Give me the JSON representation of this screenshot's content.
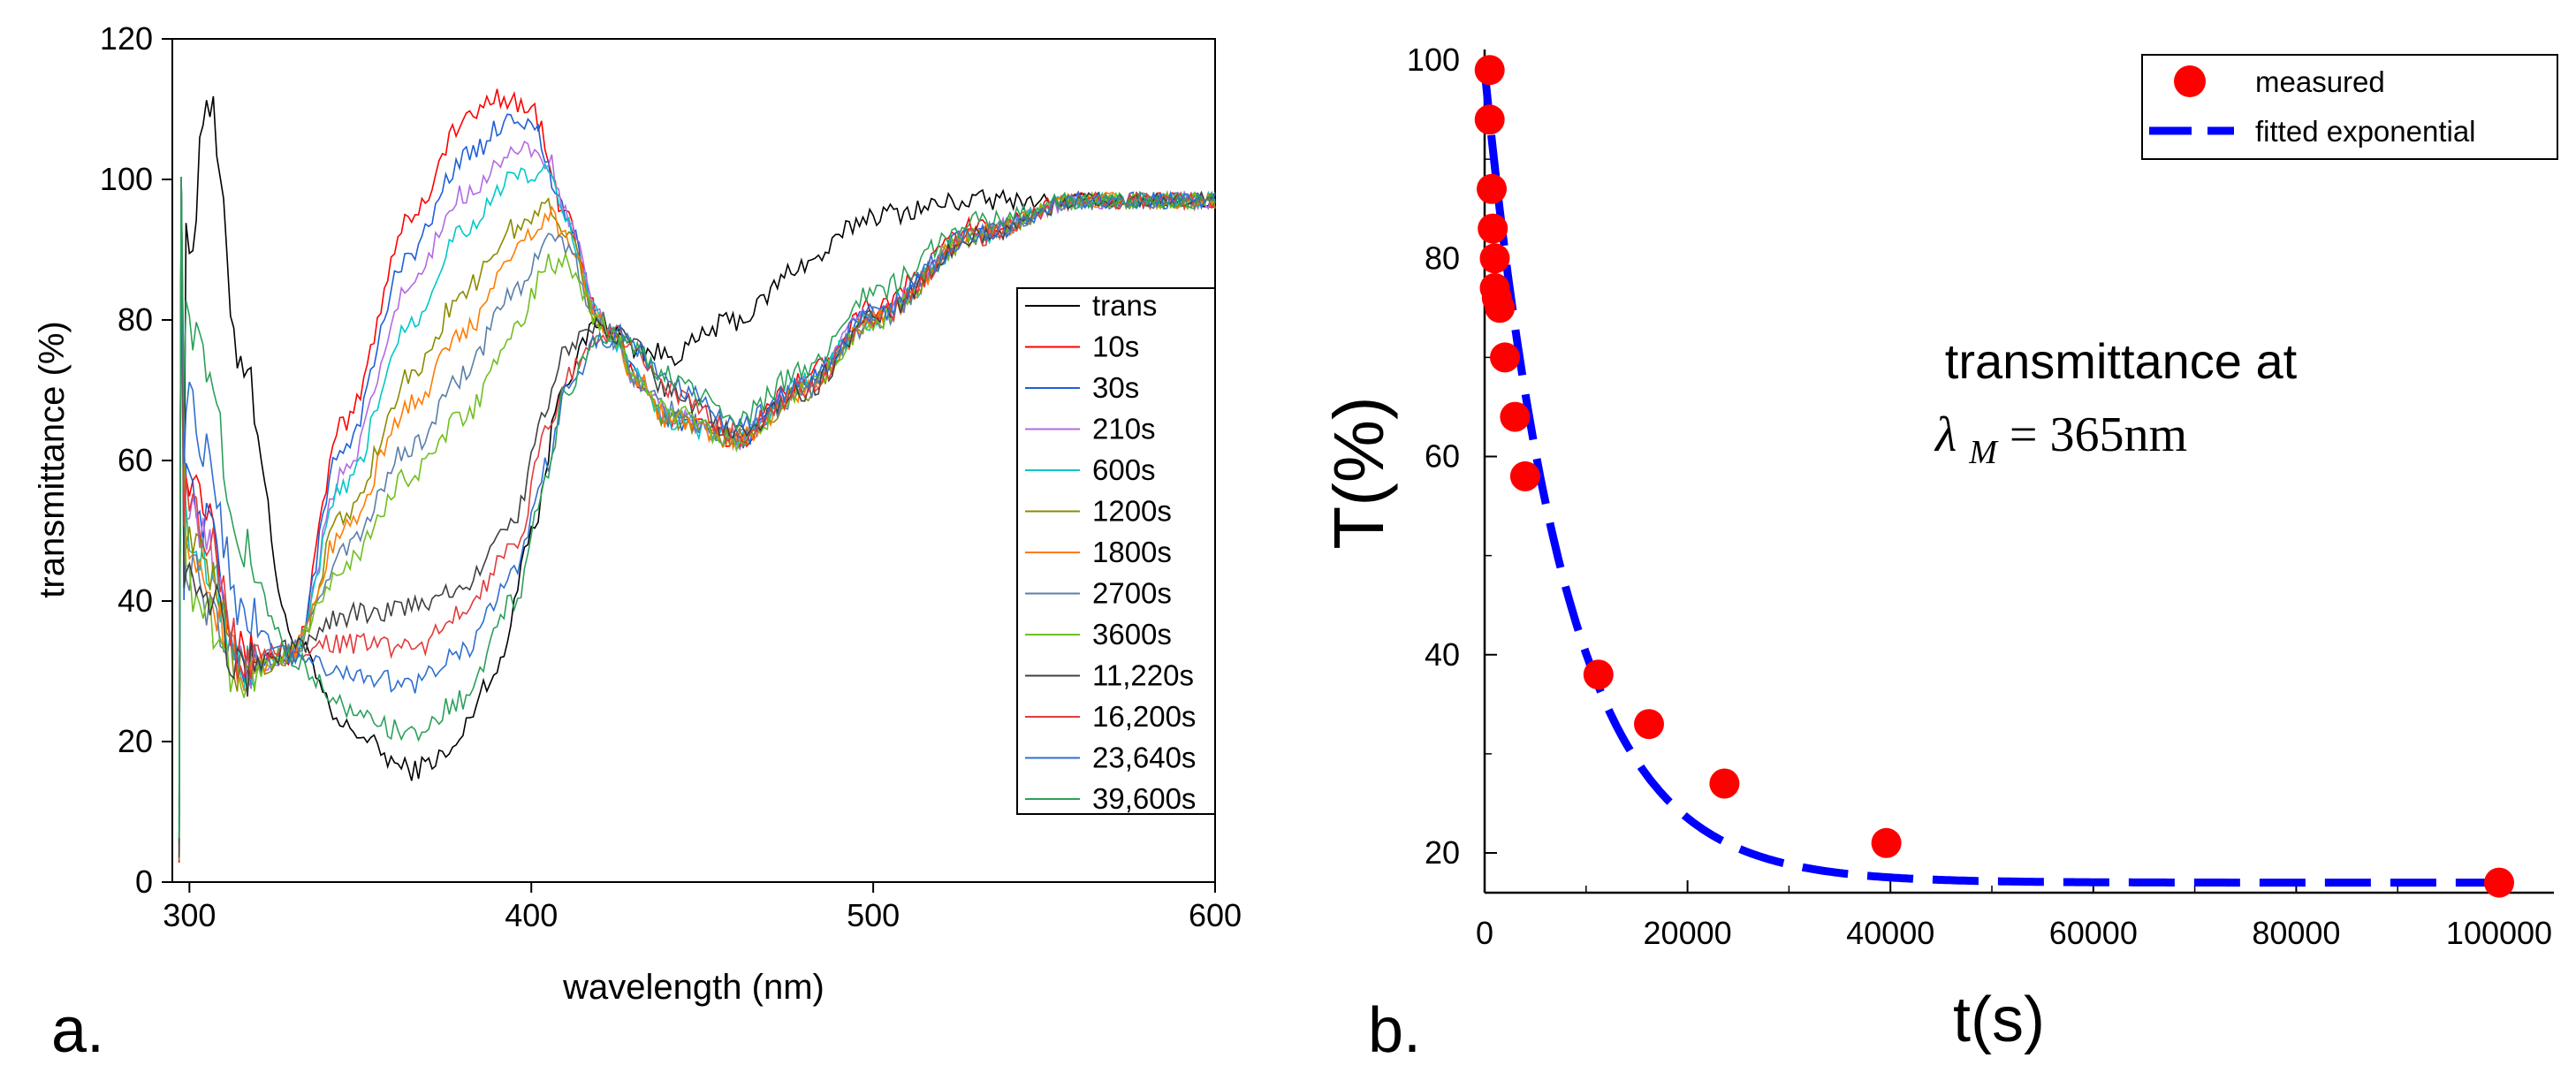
{
  "chart_data": [
    {
      "type": "line",
      "panel_label": "a.",
      "title": "",
      "xlabel": "wavelength (nm)",
      "ylabel": "transmittance (%)",
      "xlim": [
        295,
        600
      ],
      "ylim": [
        0,
        120
      ],
      "xticks": [
        300,
        400,
        500,
        600
      ],
      "yticks": [
        0,
        20,
        40,
        60,
        80,
        100,
        120
      ],
      "legend_position": "right",
      "series": [
        {
          "name": "trans",
          "color": "#000000",
          "x": [
            300,
            305,
            315,
            330,
            345,
            365,
            375,
            390,
            400,
            410,
            420,
            425,
            430,
            440,
            460,
            480,
            500,
            530,
            560,
            600
          ],
          "y": [
            90,
            112,
            75,
            35,
            22,
            16,
            18,
            30,
            50,
            72,
            80,
            78,
            76,
            75,
            80,
            88,
            95,
            97,
            97,
            97
          ]
        },
        {
          "name": "10s",
          "color": "#ff0000",
          "x": [
            300,
            305,
            315,
            330,
            345,
            365,
            380,
            390,
            400,
            410,
            420,
            425,
            430,
            440,
            460,
            480,
            500,
            530,
            560,
            600
          ],
          "y": [
            58,
            55,
            32,
            32,
            65,
            95,
            108,
            112,
            110,
            95,
            80,
            77,
            72,
            66,
            63,
            72,
            82,
            93,
            97,
            97
          ]
        },
        {
          "name": "30s",
          "color": "#1f5fd6",
          "x": [
            300,
            305,
            315,
            330,
            345,
            365,
            380,
            395,
            400,
            410,
            420,
            425,
            430,
            440,
            460,
            480,
            500,
            530,
            560,
            600
          ],
          "y": [
            56,
            52,
            31,
            32,
            62,
            90,
            103,
            109,
            108,
            95,
            80,
            77,
            72,
            66,
            63,
            71,
            81,
            92,
            97,
            97
          ]
        },
        {
          "name": "210s",
          "color": "#b36ae2",
          "x": [
            300,
            305,
            315,
            330,
            345,
            365,
            380,
            395,
            405,
            410,
            420,
            425,
            430,
            440,
            460,
            480,
            500,
            530,
            560,
            600
          ],
          "y": [
            52,
            48,
            30,
            32,
            58,
            85,
            98,
            104,
            103,
            95,
            80,
            77,
            72,
            66,
            63,
            71,
            81,
            92,
            97,
            97
          ]
        },
        {
          "name": "600s",
          "color": "#00c8c8",
          "x": [
            300,
            305,
            315,
            330,
            345,
            365,
            380,
            395,
            405,
            410,
            420,
            425,
            430,
            440,
            460,
            480,
            500,
            530,
            560,
            600
          ],
          "y": [
            50,
            46,
            30,
            32,
            56,
            80,
            93,
            100,
            101,
            94,
            80,
            77,
            72,
            66,
            63,
            71,
            80,
            92,
            97,
            97
          ]
        },
        {
          "name": "1200s",
          "color": "#8b8b00",
          "x": [
            300,
            305,
            315,
            330,
            345,
            365,
            380,
            395,
            405,
            410,
            420,
            425,
            430,
            440,
            460,
            480,
            500,
            530,
            560,
            600
          ],
          "y": [
            48,
            44,
            30,
            32,
            52,
            72,
            84,
            93,
            96,
            93,
            80,
            77,
            72,
            66,
            63,
            70,
            80,
            92,
            97,
            97
          ]
        },
        {
          "name": "1800s",
          "color": "#ff7b00",
          "x": [
            300,
            305,
            315,
            330,
            345,
            365,
            380,
            395,
            405,
            410,
            420,
            425,
            430,
            440,
            460,
            480,
            500,
            530,
            560,
            600
          ],
          "y": [
            46,
            42,
            30,
            33,
            50,
            68,
            78,
            90,
            95,
            92,
            80,
            77,
            72,
            66,
            63,
            70,
            80,
            92,
            97,
            97
          ]
        },
        {
          "name": "2700s",
          "color": "#5a7fa8",
          "x": [
            300,
            305,
            315,
            330,
            345,
            365,
            380,
            395,
            405,
            410,
            420,
            425,
            430,
            440,
            460,
            480,
            500,
            530,
            560,
            600
          ],
          "y": [
            44,
            40,
            30,
            33,
            47,
            62,
            72,
            84,
            92,
            90,
            80,
            77,
            72,
            67,
            63,
            70,
            80,
            92,
            97,
            97
          ]
        },
        {
          "name": "3600s",
          "color": "#6fbf20",
          "x": [
            300,
            305,
            315,
            330,
            345,
            365,
            380,
            395,
            405,
            410,
            420,
            425,
            430,
            440,
            460,
            480,
            500,
            530,
            560,
            600
          ],
          "y": [
            42,
            38,
            29,
            33,
            45,
            58,
            66,
            78,
            88,
            88,
            80,
            77,
            72,
            67,
            63,
            70,
            80,
            92,
            97,
            97
          ]
        },
        {
          "name": "11,220s",
          "color": "#404040",
          "x": [
            300,
            305,
            315,
            330,
            345,
            365,
            380,
            395,
            405,
            410,
            420,
            425,
            430,
            440,
            460,
            480,
            500,
            530,
            560,
            600
          ],
          "y": [
            45,
            42,
            30,
            33,
            38,
            39,
            42,
            52,
            68,
            76,
            79,
            78,
            76,
            70,
            64,
            70,
            80,
            92,
            97,
            97
          ]
        },
        {
          "name": "16,200s",
          "color": "#e23b3b",
          "x": [
            300,
            305,
            315,
            330,
            345,
            365,
            380,
            395,
            405,
            410,
            420,
            425,
            430,
            440,
            460,
            480,
            500,
            530,
            560,
            600
          ],
          "y": [
            55,
            50,
            32,
            33,
            34,
            33,
            38,
            48,
            64,
            72,
            78,
            78,
            76,
            70,
            64,
            70,
            80,
            92,
            97,
            97
          ]
        },
        {
          "name": "23,640s",
          "color": "#2f6fd0",
          "x": [
            300,
            305,
            315,
            330,
            345,
            365,
            380,
            395,
            405,
            410,
            420,
            425,
            430,
            440,
            460,
            480,
            500,
            530,
            560,
            600
          ],
          "y": [
            68,
            62,
            38,
            32,
            30,
            28,
            33,
            44,
            60,
            70,
            77,
            78,
            76,
            71,
            65,
            71,
            81,
            92,
            97,
            97
          ]
        },
        {
          "name": "39,600s",
          "color": "#2ca05a",
          "x": [
            300,
            305,
            315,
            330,
            345,
            365,
            380,
            395,
            405,
            410,
            420,
            425,
            430,
            440,
            460,
            480,
            500,
            530,
            560,
            600
          ],
          "y": [
            80,
            72,
            48,
            32,
            25,
            21,
            26,
            40,
            58,
            70,
            78,
            78,
            76,
            72,
            66,
            73,
            84,
            94,
            97,
            97
          ]
        }
      ]
    },
    {
      "type": "scatter",
      "panel_label": "b.",
      "title": "",
      "xlabel": "t(s)",
      "ylabel": "T(%)",
      "xlim": [
        0,
        100000
      ],
      "ylim": [
        16,
        100
      ],
      "xticks": [
        0,
        20000,
        40000,
        60000,
        80000,
        100000
      ],
      "xtick_labels": [
        "0",
        "20000",
        "40000",
        "60000",
        "80000",
        "100000"
      ],
      "yticks": [
        20,
        40,
        60,
        80,
        100
      ],
      "legend_position": "top-right",
      "annotation": {
        "line1": "transmittance at",
        "symbol": "λ",
        "subscript": "M",
        "equals": "= 365nm"
      },
      "series": [
        {
          "name": "measured",
          "type": "scatter",
          "color": "#ff0000",
          "x": [
            500,
            500,
            700,
            800,
            1000,
            1000,
            1200,
            1500,
            2000,
            3000,
            4000,
            11220,
            16200,
            23640,
            39600,
            100000
          ],
          "y": [
            99,
            94,
            87,
            83,
            80,
            77,
            76,
            75,
            70,
            64,
            58,
            38,
            33,
            27,
            21,
            17
          ]
        },
        {
          "name": "fitted exponential",
          "type": "line",
          "style": "dashed",
          "color": "#0000ff",
          "model": {
            "baseline": 17,
            "amplitude": 82,
            "tau": 7900
          }
        }
      ]
    }
  ]
}
